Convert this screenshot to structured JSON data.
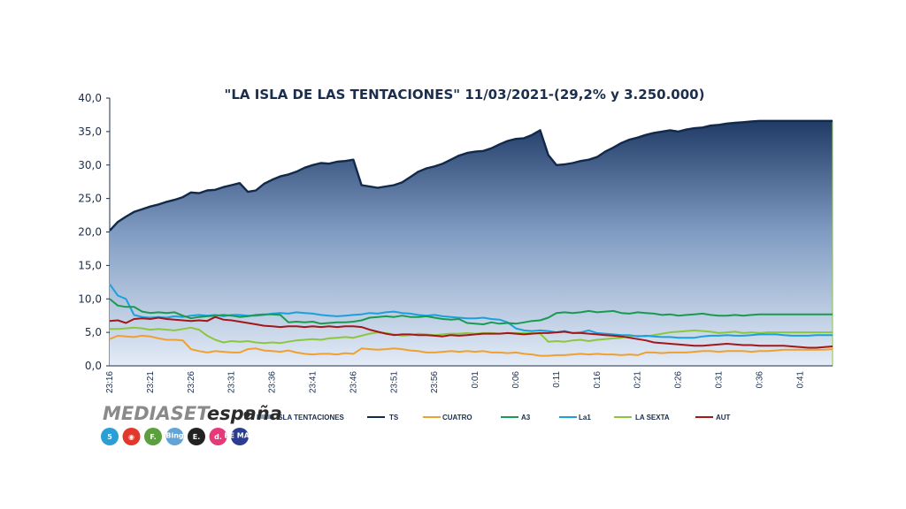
{
  "chart_data": {
    "type": "line",
    "title": "\"LA ISLA DE LAS TENTACIONES\" 11/03/2021-(29,2% y 3.250.000)",
    "xlabel": "",
    "ylabel": "",
    "ylim": [
      0,
      40
    ],
    "y_ticks": [
      "0,0",
      "5,0",
      "10,0",
      "15,0",
      "20,0",
      "25,0",
      "30,0",
      "35,0",
      "40,0"
    ],
    "x_ticks": [
      "23:16",
      "23:21",
      "23:26",
      "23:31",
      "23:36",
      "23:41",
      "23:46",
      "23:51",
      "23:56",
      "0:01",
      "0:06",
      "0:11",
      "0:16",
      "0:21",
      "0:26",
      "0:31",
      "0:36",
      "0:41"
    ],
    "legend_placement": "bottom",
    "grid": false,
    "series": [
      {
        "name": "TS",
        "color": "#12294a",
        "style": "area",
        "x": [
          0,
          1,
          2,
          3,
          4,
          5,
          6,
          7,
          8,
          9,
          10,
          11,
          12,
          13,
          14,
          15,
          16,
          17,
          18,
          19,
          20,
          21,
          22,
          23,
          24,
          25,
          26,
          27,
          28,
          29,
          30,
          31,
          32,
          33,
          34,
          35,
          36,
          37,
          38,
          39,
          40,
          41,
          42,
          43,
          44,
          45,
          46,
          47,
          48,
          49,
          50,
          51,
          52,
          53,
          54,
          55,
          56,
          57,
          58,
          59,
          60,
          61,
          62,
          63,
          64,
          65,
          66,
          67,
          68,
          69,
          70,
          71,
          72,
          73,
          74,
          75,
          76,
          77,
          78,
          79,
          80,
          81,
          82,
          83,
          84,
          85,
          86,
          87,
          88,
          89
        ],
        "values": [
          20.2,
          21.5,
          22.3,
          23.0,
          23.4,
          23.8,
          24.1,
          24.5,
          24.8,
          25.2,
          25.9,
          25.8,
          26.2,
          26.3,
          26.7,
          27.0,
          27.3,
          26.0,
          26.2,
          27.2,
          27.8,
          28.3,
          28.6,
          29.0,
          29.6,
          30.0,
          30.3,
          30.2,
          30.5,
          30.6,
          30.8,
          27.0,
          26.8,
          26.6,
          26.8,
          27.0,
          27.4,
          28.2,
          29.0,
          29.5,
          29.8,
          30.2,
          30.8,
          31.4,
          31.8,
          32.0,
          32.1,
          32.5,
          33.1,
          33.6,
          33.9,
          34.0,
          34.5,
          35.2,
          31.5,
          30.0,
          30.1,
          30.3,
          30.6,
          30.8,
          31.2,
          32.0,
          32.6,
          33.3,
          33.8,
          34.1,
          34.5,
          34.8,
          35.0,
          35.2,
          35.0,
          35.3,
          35.5,
          35.6,
          35.9,
          36.0,
          36.2,
          36.3,
          36.4,
          36.5,
          36.6,
          36.6,
          36.6,
          36.6,
          36.6,
          36.6,
          36.6,
          36.6,
          36.6,
          36.6
        ]
      },
      {
        "name": "CUATRO",
        "color": "#f0a030",
        "style": "line",
        "x": [
          0,
          1,
          2,
          3,
          4,
          5,
          6,
          7,
          8,
          9,
          10,
          11,
          12,
          13,
          14,
          15,
          16,
          17,
          18,
          19,
          20,
          21,
          22,
          23,
          24,
          25,
          26,
          27,
          28,
          29,
          30,
          31,
          32,
          33,
          34,
          35,
          36,
          37,
          38,
          39,
          40,
          41,
          42,
          43,
          44,
          45,
          46,
          47,
          48,
          49,
          50,
          51,
          52,
          53,
          54,
          55,
          56,
          57,
          58,
          59,
          60,
          61,
          62,
          63,
          64,
          65,
          66,
          67,
          68,
          69,
          70,
          71,
          72,
          73,
          74,
          75,
          76,
          77,
          78,
          79,
          80,
          81,
          82,
          83,
          84,
          85,
          86,
          87,
          88,
          89
        ],
        "values": [
          4.0,
          4.5,
          4.4,
          4.3,
          4.5,
          4.4,
          4.1,
          3.9,
          3.9,
          3.8,
          2.5,
          2.2,
          2.0,
          2.2,
          2.1,
          2.0,
          2.0,
          2.5,
          2.6,
          2.3,
          2.2,
          2.1,
          2.3,
          2.0,
          1.8,
          1.7,
          1.8,
          1.8,
          1.7,
          1.9,
          1.8,
          2.6,
          2.5,
          2.4,
          2.5,
          2.6,
          2.5,
          2.3,
          2.2,
          2.0,
          2.0,
          2.1,
          2.2,
          2.1,
          2.2,
          2.1,
          2.2,
          2.0,
          2.0,
          1.9,
          2.0,
          1.8,
          1.7,
          1.5,
          1.5,
          1.6,
          1.6,
          1.7,
          1.8,
          1.7,
          1.8,
          1.7,
          1.7,
          1.6,
          1.7,
          1.6,
          2.0,
          2.0,
          1.9,
          2.0,
          2.0,
          2.0,
          2.1,
          2.2,
          2.2,
          2.1,
          2.2,
          2.2,
          2.2,
          2.1,
          2.2,
          2.2,
          2.3,
          2.4,
          2.4,
          2.4,
          2.4,
          2.4,
          2.4,
          2.5
        ]
      },
      {
        "name": "A3",
        "color": "#1a9a50",
        "style": "line",
        "x": [
          0,
          1,
          2,
          3,
          4,
          5,
          6,
          7,
          8,
          9,
          10,
          11,
          12,
          13,
          14,
          15,
          16,
          17,
          18,
          19,
          20,
          21,
          22,
          23,
          24,
          25,
          26,
          27,
          28,
          29,
          30,
          31,
          32,
          33,
          34,
          35,
          36,
          37,
          38,
          39,
          40,
          41,
          42,
          43,
          44,
          45,
          46,
          47,
          48,
          49,
          50,
          51,
          52,
          53,
          54,
          55,
          56,
          57,
          58,
          59,
          60,
          61,
          62,
          63,
          64,
          65,
          66,
          67,
          68,
          69,
          70,
          71,
          72,
          73,
          74,
          75,
          76,
          77,
          78,
          79,
          80,
          81,
          82,
          83,
          84,
          85,
          86,
          87,
          88,
          89
        ],
        "values": [
          10.0,
          9.0,
          8.8,
          8.8,
          8.1,
          7.9,
          8.0,
          7.9,
          8.0,
          7.5,
          7.1,
          7.3,
          7.4,
          7.5,
          7.6,
          7.5,
          7.3,
          7.4,
          7.6,
          7.7,
          7.7,
          7.6,
          6.5,
          6.6,
          6.5,
          6.6,
          6.3,
          6.4,
          6.5,
          6.5,
          6.6,
          6.8,
          7.2,
          7.3,
          7.4,
          7.3,
          7.5,
          7.3,
          7.3,
          7.4,
          7.2,
          7.0,
          6.9,
          7.0,
          6.4,
          6.3,
          6.2,
          6.5,
          6.3,
          6.4,
          6.3,
          6.5,
          6.7,
          6.8,
          7.2,
          7.9,
          8.0,
          7.9,
          8.0,
          8.2,
          8.0,
          8.1,
          8.2,
          7.9,
          7.8,
          8.0,
          7.9,
          7.8,
          7.6,
          7.7,
          7.5,
          7.6,
          7.7,
          7.8,
          7.6,
          7.5,
          7.5,
          7.6,
          7.5,
          7.6,
          7.7,
          7.7,
          7.7,
          7.7,
          7.7,
          7.7,
          7.7,
          7.7,
          7.7,
          7.7
        ]
      },
      {
        "name": "La1",
        "color": "#1ca0dc",
        "style": "line",
        "x": [
          0,
          1,
          2,
          3,
          4,
          5,
          6,
          7,
          8,
          9,
          10,
          11,
          12,
          13,
          14,
          15,
          16,
          17,
          18,
          19,
          20,
          21,
          22,
          23,
          24,
          25,
          26,
          27,
          28,
          29,
          30,
          31,
          32,
          33,
          34,
          35,
          36,
          37,
          38,
          39,
          40,
          41,
          42,
          43,
          44,
          45,
          46,
          47,
          48,
          49,
          50,
          51,
          52,
          53,
          54,
          55,
          56,
          57,
          58,
          59,
          60,
          61,
          62,
          63,
          64,
          65,
          66,
          67,
          68,
          69,
          70,
          71,
          72,
          73,
          74,
          75,
          76,
          77,
          78,
          79,
          80,
          81,
          82,
          83,
          84,
          85,
          86,
          87,
          88,
          89
        ],
        "values": [
          12.2,
          10.5,
          10.0,
          7.6,
          7.3,
          7.2,
          7.3,
          7.2,
          7.4,
          7.3,
          7.5,
          7.6,
          7.5,
          7.6,
          7.4,
          7.6,
          7.6,
          7.5,
          7.5,
          7.6,
          7.8,
          7.9,
          7.8,
          8.0,
          7.9,
          7.8,
          7.6,
          7.5,
          7.4,
          7.5,
          7.6,
          7.7,
          7.9,
          7.8,
          8.0,
          8.1,
          7.9,
          7.8,
          7.6,
          7.5,
          7.6,
          7.4,
          7.3,
          7.2,
          7.1,
          7.1,
          7.2,
          7.0,
          6.9,
          6.5,
          5.6,
          5.3,
          5.2,
          5.3,
          5.2,
          5.0,
          5.2,
          4.9,
          5.0,
          5.3,
          4.9,
          4.8,
          4.7,
          4.6,
          4.6,
          4.4,
          4.5,
          4.4,
          4.3,
          4.3,
          4.2,
          4.2,
          4.2,
          4.4,
          4.5,
          4.5,
          4.6,
          4.5,
          4.5,
          4.6,
          4.7,
          4.7,
          4.7,
          4.6,
          4.5,
          4.5,
          4.5,
          4.6,
          4.6,
          4.6
        ]
      },
      {
        "name": "LA SEXTA",
        "color": "#8cc63f",
        "style": "line",
        "x": [
          0,
          1,
          2,
          3,
          4,
          5,
          6,
          7,
          8,
          9,
          10,
          11,
          12,
          13,
          14,
          15,
          16,
          17,
          18,
          19,
          20,
          21,
          22,
          23,
          24,
          25,
          26,
          27,
          28,
          29,
          30,
          31,
          32,
          33,
          34,
          35,
          36,
          37,
          38,
          39,
          40,
          41,
          42,
          43,
          44,
          45,
          46,
          47,
          48,
          49,
          50,
          51,
          52,
          53,
          54,
          55,
          56,
          57,
          58,
          59,
          60,
          61,
          62,
          63,
          64,
          65,
          66,
          67,
          68,
          69,
          70,
          71,
          72,
          73,
          74,
          75,
          76,
          77,
          78,
          79,
          80,
          81,
          82,
          83,
          84,
          85,
          86,
          87,
          88,
          89
        ],
        "values": [
          5.5,
          5.5,
          5.6,
          5.7,
          5.6,
          5.4,
          5.5,
          5.4,
          5.3,
          5.5,
          5.7,
          5.4,
          4.5,
          3.9,
          3.5,
          3.7,
          3.6,
          3.7,
          3.5,
          3.4,
          3.5,
          3.4,
          3.6,
          3.8,
          3.9,
          4.0,
          3.9,
          4.1,
          4.2,
          4.3,
          4.2,
          4.5,
          4.8,
          5.0,
          4.9,
          4.7,
          4.5,
          4.6,
          4.8,
          4.7,
          4.6,
          4.7,
          4.8,
          4.8,
          4.9,
          4.8,
          4.9,
          4.9,
          4.8,
          4.9,
          4.9,
          4.9,
          4.9,
          4.8,
          3.6,
          3.7,
          3.6,
          3.8,
          3.9,
          3.7,
          3.9,
          4.0,
          4.1,
          4.2,
          4.4,
          4.5,
          4.4,
          4.6,
          4.8,
          5.0,
          5.1,
          5.2,
          5.3,
          5.2,
          5.1,
          4.9,
          5.0,
          5.1,
          4.9,
          5.0,
          4.9,
          5.0,
          5.0,
          5.0,
          5.0,
          5.0,
          5.0,
          5.0,
          5.0,
          5.0
        ]
      },
      {
        "name": "AUT",
        "color": "#a3161a",
        "style": "line",
        "x": [
          0,
          1,
          2,
          3,
          4,
          5,
          6,
          7,
          8,
          9,
          10,
          11,
          12,
          13,
          14,
          15,
          16,
          17,
          18,
          19,
          20,
          21,
          22,
          23,
          24,
          25,
          26,
          27,
          28,
          29,
          30,
          31,
          32,
          33,
          34,
          35,
          36,
          37,
          38,
          39,
          40,
          41,
          42,
          43,
          44,
          45,
          46,
          47,
          48,
          49,
          50,
          51,
          52,
          53,
          54,
          55,
          56,
          57,
          58,
          59,
          60,
          61,
          62,
          63,
          64,
          65,
          66,
          67,
          68,
          69,
          70,
          71,
          72,
          73,
          74,
          75,
          76,
          77,
          78,
          79,
          80,
          81,
          82,
          83,
          84,
          85,
          86,
          87,
          88,
          89
        ],
        "values": [
          6.7,
          6.8,
          6.4,
          7.0,
          7.1,
          7.0,
          7.2,
          7.0,
          6.9,
          6.8,
          6.7,
          6.8,
          6.7,
          7.3,
          6.9,
          6.8,
          6.6,
          6.4,
          6.2,
          6.0,
          5.9,
          5.8,
          5.9,
          5.9,
          5.8,
          5.9,
          5.8,
          5.9,
          5.8,
          5.9,
          5.9,
          5.8,
          5.4,
          5.1,
          4.8,
          4.6,
          4.7,
          4.7,
          4.6,
          4.6,
          4.5,
          4.4,
          4.6,
          4.5,
          4.6,
          4.7,
          4.8,
          4.8,
          4.8,
          4.9,
          4.8,
          4.7,
          4.8,
          4.9,
          4.9,
          5.0,
          5.1,
          4.9,
          4.9,
          4.8,
          4.7,
          4.6,
          4.5,
          4.4,
          4.2,
          4.0,
          3.8,
          3.5,
          3.4,
          3.3,
          3.2,
          3.1,
          3.0,
          3.0,
          3.1,
          3.2,
          3.3,
          3.2,
          3.1,
          3.1,
          3.0,
          3.0,
          3.0,
          3.0,
          2.9,
          2.8,
          2.7,
          2.7,
          2.8,
          2.9
        ]
      },
      {
        "name": "ISLA TENTACIONES",
        "color": "#8aa6c0",
        "style": "legend-only"
      }
    ]
  },
  "branding": {
    "brand_mediaset": "MEDIASET",
    "brand_espana": "españa",
    "brand_color_grey": "#8a8a8a",
    "brand_color_dark": "#2b2b2b",
    "channel_logos": [
      {
        "name": "telecinco-icon",
        "color": "#2a9fd6",
        "glyph": "5"
      },
      {
        "name": "cuatro-icon",
        "color": "#e2382b",
        "glyph": "◉"
      },
      {
        "name": "fdf-icon",
        "color": "#5aa03c",
        "glyph": "F."
      },
      {
        "name": "boing-icon",
        "color": "#63a3d6",
        "glyph": "Bing"
      },
      {
        "name": "energy-icon",
        "color": "#222222",
        "glyph": "E."
      },
      {
        "name": "divinity-icon",
        "color": "#e5397a",
        "glyph": "d."
      },
      {
        "name": "be-mad-icon",
        "color": "#2b3d8f",
        "glyph": "BE MAD"
      }
    ]
  }
}
